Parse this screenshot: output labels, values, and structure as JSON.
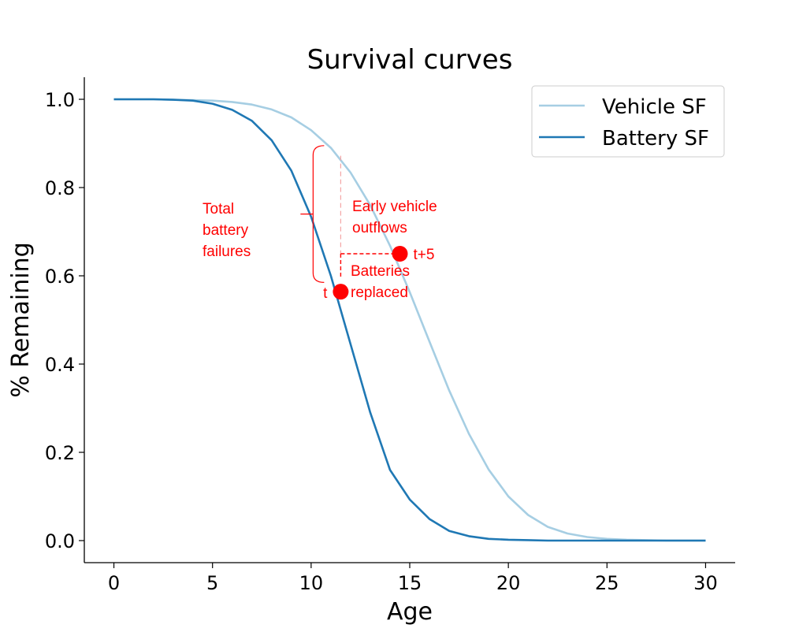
{
  "chart_data": {
    "type": "line",
    "title": "Survival curves",
    "xlabel": "Age",
    "ylabel": "% Remaining",
    "xlim": [
      -1.5,
      31.5
    ],
    "ylim": [
      -0.05,
      1.05
    ],
    "xticks": [
      "0",
      "5",
      "10",
      "15",
      "20",
      "25",
      "30"
    ],
    "yticks": [
      "0.0",
      "0.2",
      "0.4",
      "0.6",
      "0.8",
      "1.0"
    ],
    "legend_position": "top-right",
    "grid": false,
    "x": [
      0,
      1,
      2,
      3,
      4,
      5,
      6,
      7,
      8,
      9,
      10,
      11,
      12,
      13,
      14,
      15,
      16,
      17,
      18,
      19,
      20,
      21,
      22,
      23,
      24,
      25,
      26,
      27,
      28,
      29,
      30
    ],
    "series": [
      {
        "name": "Vehicle SF",
        "color": "#a6cee3",
        "values": [
          1.0,
          1.0,
          1.0,
          0.999,
          0.998,
          0.997,
          0.994,
          0.988,
          0.977,
          0.959,
          0.93,
          0.89,
          0.834,
          0.76,
          0.668,
          0.563,
          0.451,
          0.34,
          0.242,
          0.161,
          0.1,
          0.058,
          0.031,
          0.016,
          0.008,
          0.004,
          0.002,
          0.001,
          0.0,
          0.0,
          0.0
        ]
      },
      {
        "name": "Battery SF",
        "color": "#1f78b4",
        "values": [
          1.0,
          1.0,
          1.0,
          0.999,
          0.997,
          0.99,
          0.976,
          0.951,
          0.907,
          0.838,
          0.734,
          0.6,
          0.445,
          0.29,
          0.16,
          0.093,
          0.049,
          0.022,
          0.01,
          0.004,
          0.002,
          0.001,
          0.0,
          0.0,
          0.0,
          0.0,
          0.0,
          0.0,
          0.0,
          0.0,
          0.0
        ]
      }
    ],
    "annotations": {
      "color": "#ff0000",
      "total_failures_label": [
        "Total",
        "battery",
        "failures"
      ],
      "early_outflows_label": [
        "Early vehicle",
        "outflows"
      ],
      "batteries_replaced_label": [
        "Batteries",
        "replaced"
      ],
      "point_t": {
        "x": 11.5,
        "y": 0.564,
        "label": "t"
      },
      "point_t5": {
        "x": 14.5,
        "y": 0.65,
        "label": "t+5"
      },
      "bracket_x": 10.1,
      "bracket_y_top": 0.895,
      "bracket_y_bottom": 0.585,
      "bracket_mid_y": 0.74,
      "dashed_x": 11.5,
      "dashed_top_y": 0.872,
      "dashed_mid_y": 0.65,
      "dashed_bottom_y": 0.596
    }
  }
}
